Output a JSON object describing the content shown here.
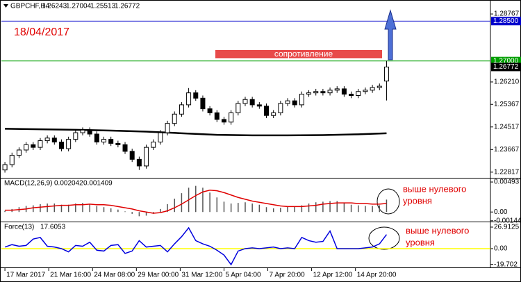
{
  "chart_data": [
    {
      "type": "candlestick",
      "symbol": "GBPCHF,H4",
      "date_note": "18/04/2017",
      "zone_label": "сопротивление",
      "xlim": [
        -0.5,
        68.7
      ],
      "xticks": [
        {
          "value": 0,
          "label": "17 Mar 2017"
        },
        {
          "value": 6.2,
          "label": "21 Mar 16:00"
        },
        {
          "value": 12.4,
          "label": "24 Mar 08:00"
        },
        {
          "value": 18.6,
          "label": "29 Mar 00:00"
        },
        {
          "value": 24.8,
          "label": "31 Mar 12:00"
        },
        {
          "value": 31,
          "label": "5 Apr 04:00"
        },
        {
          "value": 37.2,
          "label": "7 Apr 20:00"
        },
        {
          "value": 43.4,
          "label": "12 Apr 12:00"
        },
        {
          "value": 49.6,
          "label": "14 Apr 20:00"
        }
      ],
      "ylim": [
        1.2263,
        1.2924
      ],
      "yticks": [
        1.28767,
        1.25367,
        1.24517,
        1.23667,
        1.22817,
        {
          "value": 1.2621,
          "label": "1.26210"
        }
      ],
      "levels": [
        {
          "value": 1.285,
          "label": "1.28500",
          "color": "#0000cc"
        },
        {
          "value": 1.27,
          "label": "1.27000",
          "color": "#00a000"
        }
      ],
      "open": [
        1.229,
        1.231,
        1.2345,
        1.2365,
        1.2385,
        1.2375,
        1.24,
        1.241,
        1.2395,
        1.237,
        1.2405,
        1.243,
        1.244,
        1.2425,
        1.2395,
        1.2405,
        1.239,
        1.2385,
        1.236,
        1.233,
        1.2305,
        1.2375,
        1.2395,
        1.243,
        1.2465,
        1.25,
        1.2535,
        1.258,
        1.256,
        1.252,
        1.2505,
        1.248,
        1.247,
        1.2505,
        1.254,
        1.2555,
        1.2535,
        1.253,
        1.2495,
        1.2505,
        1.254,
        1.255,
        1.2535,
        1.2575,
        1.258,
        1.2585,
        1.258,
        1.259,
        1.2595,
        1.2575,
        1.257,
        1.2585,
        1.259,
        1.26,
        1.26243
      ],
      "high": [
        1.232,
        1.2355,
        1.2375,
        1.2395,
        1.2395,
        1.241,
        1.242,
        1.242,
        1.2405,
        1.2415,
        1.244,
        1.245,
        1.245,
        1.2435,
        1.2415,
        1.2415,
        1.24,
        1.2395,
        1.237,
        1.234,
        1.2385,
        1.2405,
        1.244,
        1.2475,
        1.251,
        1.2545,
        1.2598,
        1.259,
        1.257,
        1.253,
        1.2515,
        1.249,
        1.2515,
        1.255,
        1.2565,
        1.2565,
        1.2545,
        1.254,
        1.2515,
        1.255,
        1.256,
        1.256,
        1.2585,
        1.259,
        1.2595,
        1.2595,
        1.26,
        1.2605,
        1.2605,
        1.2585,
        1.2595,
        1.26,
        1.261,
        1.2615,
        1.27004
      ],
      "low": [
        1.228,
        1.23,
        1.2335,
        1.2355,
        1.2365,
        1.2365,
        1.239,
        1.2385,
        1.236,
        1.236,
        1.2395,
        1.242,
        1.2415,
        1.2385,
        1.2385,
        1.238,
        1.2375,
        1.235,
        1.232,
        1.229,
        1.2295,
        1.2365,
        1.2385,
        1.242,
        1.2455,
        1.249,
        1.2525,
        1.255,
        1.251,
        1.2495,
        1.247,
        1.246,
        1.246,
        1.2495,
        1.253,
        1.2525,
        1.252,
        1.2485,
        1.2485,
        1.2495,
        1.253,
        1.2525,
        1.2525,
        1.2565,
        1.257,
        1.257,
        1.257,
        1.258,
        1.2565,
        1.256,
        1.256,
        1.2575,
        1.258,
        1.259,
        1.25513
      ],
      "close": [
        1.231,
        1.2345,
        1.2365,
        1.2385,
        1.2375,
        1.24,
        1.241,
        1.2395,
        1.237,
        1.2405,
        1.243,
        1.244,
        1.2425,
        1.2395,
        1.2405,
        1.239,
        1.2385,
        1.236,
        1.233,
        1.2305,
        1.2375,
        1.2395,
        1.243,
        1.2465,
        1.25,
        1.2535,
        1.258,
        1.256,
        1.252,
        1.2505,
        1.248,
        1.247,
        1.2505,
        1.254,
        1.2555,
        1.2535,
        1.253,
        1.2495,
        1.2505,
        1.254,
        1.255,
        1.2535,
        1.2575,
        1.258,
        1.2585,
        1.258,
        1.259,
        1.2595,
        1.2575,
        1.257,
        1.2585,
        1.259,
        1.26,
        1.2605,
        1.26772
      ],
      "ma": {
        "color": "#000000",
        "x": [
          0,
          5,
          10,
          15,
          20,
          25,
          30,
          35,
          40,
          45,
          50,
          54
        ],
        "values": [
          1.2445,
          1.2443,
          1.2441,
          1.2438,
          1.2434,
          1.2428,
          1.2422,
          1.242,
          1.242,
          1.2421,
          1.2424,
          1.2428
        ]
      }
    },
    {
      "type": "macd",
      "title": "MACD(12,26,9)",
      "ylim": [
        -0.00146,
        0.0054
      ],
      "yticks": [
        0.004937,
        {
          "value": 0,
          "label": "0.00"
        },
        -0.001442
      ],
      "annotation": [
        "выше нулевого",
        "уровня"
      ],
      "series": [
        {
          "name": "MACD",
          "color": "#555555",
          "values": [
            0.0002,
            0.0005,
            0.0008,
            0.001,
            0.0011,
            0.0013,
            0.0014,
            0.0014,
            0.0012,
            0.0012,
            0.0014,
            0.0015,
            0.0013,
            0.001,
            0.0008,
            0.0006,
            0.0004,
            0.0001,
            -0.0003,
            -0.0007,
            -0.0006,
            -0.0003,
            0.0005,
            0.0013,
            0.0022,
            0.0031,
            0.004,
            0.0043,
            0.004,
            0.0032,
            0.0024,
            0.0017,
            0.0014,
            0.0015,
            0.0016,
            0.0014,
            0.0012,
            0.0008,
            0.0006,
            0.0007,
            0.0009,
            0.0009,
            0.0011,
            0.0014,
            0.0016,
            0.0017,
            0.0018,
            0.0018,
            0.0015,
            0.0012,
            0.0011,
            0.001,
            0.001,
            0.0011,
            0.002042
          ]
        },
        {
          "name": "Signal",
          "color": "#e00000",
          "values": [
            0.0003,
            0.0003,
            0.0004,
            0.0005,
            0.0007,
            0.0008,
            0.0009,
            0.001,
            0.0011,
            0.0011,
            0.0012,
            0.0012,
            0.0013,
            0.0012,
            0.0012,
            0.0011,
            0.0009,
            0.0007,
            0.0005,
            0.0002,
            0.0,
            -0.0002,
            -0.0001,
            0.0002,
            0.0007,
            0.0013,
            0.002,
            0.0027,
            0.0033,
            0.0036,
            0.0035,
            0.0032,
            0.0028,
            0.0024,
            0.0021,
            0.0018,
            0.0016,
            0.0014,
            0.0012,
            0.001,
            0.0009,
            0.0009,
            0.0009,
            0.001,
            0.0011,
            0.0013,
            0.0014,
            0.0015,
            0.0015,
            0.0015,
            0.0014,
            0.0014,
            0.0013,
            0.0013,
            0.001409
          ]
        }
      ]
    },
    {
      "type": "force",
      "title": "Force(13)",
      "ylim": [
        -22.6,
        32.1
      ],
      "yticks": [
        26.9125,
        {
          "value": 0,
          "label": "0.00"
        },
        -19.702
      ],
      "zero_line_color": "#ffff00",
      "annotation": [
        "выше нулевого",
        "уровня"
      ],
      "series": [
        {
          "name": "Force",
          "color": "#0000dd",
          "values": [
            2,
            5,
            3,
            4,
            12,
            14,
            3,
            2,
            0,
            -4,
            4,
            3,
            8,
            -2,
            -3,
            4,
            5,
            -6,
            -3,
            10,
            2,
            3,
            4,
            -4,
            6,
            15,
            26,
            10,
            6,
            3,
            -2,
            -8,
            -20,
            -3,
            0,
            1,
            0,
            1,
            2,
            0,
            1,
            0,
            14,
            10,
            8,
            9,
            22,
            0,
            0,
            0,
            0,
            1,
            2,
            6,
            17.6053
          ]
        }
      ]
    }
  ]
}
